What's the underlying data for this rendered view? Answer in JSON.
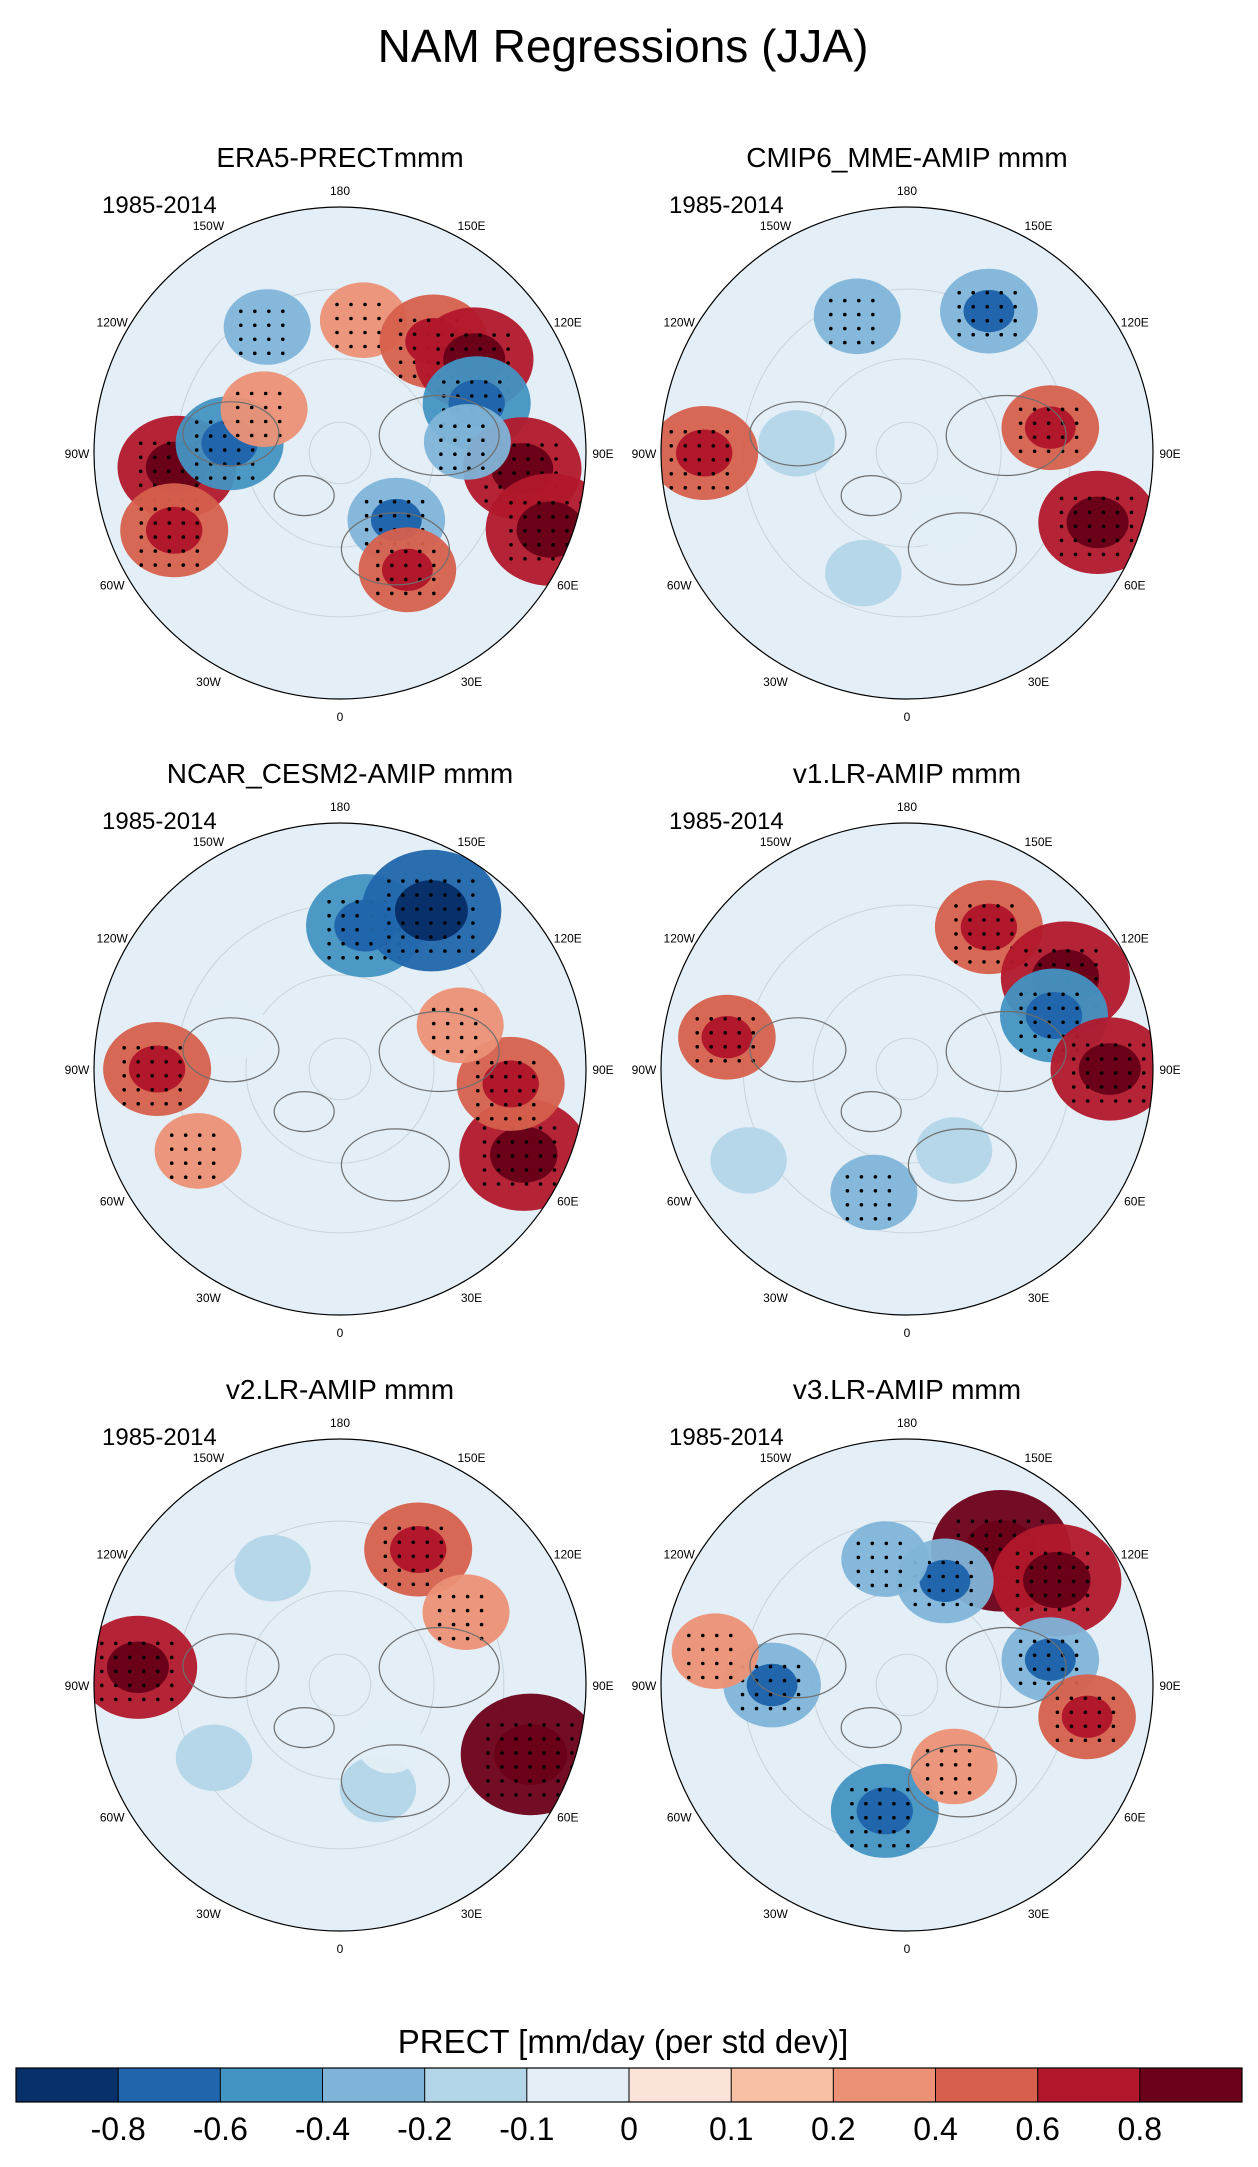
{
  "figure": {
    "title": "NAM Regressions (JJA)",
    "colorbar_label": "PRECT [mm/day (per std dev)]"
  },
  "chart_data": {
    "type": "heatmap",
    "projection": "north-polar-stereographic",
    "title": "NAM Regressions (JJA)",
    "variable": "PRECT",
    "units": "mm/day (per std dev)",
    "longitude_labels": [
      "180",
      "150E",
      "120E",
      "90E",
      "60E",
      "30E",
      "0",
      "30W",
      "60W",
      "90W",
      "120W",
      "150W"
    ],
    "colorbar": {
      "levels": [
        "-0.8",
        "-0.6",
        "-0.4",
        "-0.2",
        "-0.1",
        "0",
        "0.1",
        "0.2",
        "0.4",
        "0.6",
        "0.8"
      ],
      "colors": [
        "#08306b",
        "#2166ac",
        "#4393c3",
        "#7fb4d8",
        "#b3d5e8",
        "#e3eef6",
        "#fbe3d9",
        "#f7bfa3",
        "#ec9176",
        "#d6604d",
        "#b2182b",
        "#6b0019"
      ]
    },
    "panels": [
      {
        "title": "ERA5-PRECTmmm",
        "period": "1985-2014",
        "features": [
          {
            "lon": 170,
            "lat": 48,
            "value": 0.3
          },
          {
            "lon": 140,
            "lat": 45,
            "value": 0.5
          },
          {
            "lon": 125,
            "lat": 40,
            "value": 0.6
          },
          {
            "lon": 110,
            "lat": 45,
            "value": -0.5
          },
          {
            "lon": 85,
            "lat": 35,
            "value": 0.6
          },
          {
            "lon": 95,
            "lat": 50,
            "value": -0.3
          },
          {
            "lon": 70,
            "lat": 25,
            "value": 0.7
          },
          {
            "lon": 40,
            "lat": 62,
            "value": -0.4
          },
          {
            "lon": 30,
            "lat": 48,
            "value": 0.4
          },
          {
            "lon": -85,
            "lat": 40,
            "value": 0.6
          },
          {
            "lon": -95,
            "lat": 55,
            "value": -0.5
          },
          {
            "lon": -65,
            "lat": 35,
            "value": 0.5
          },
          {
            "lon": -120,
            "lat": 62,
            "value": 0.3
          },
          {
            "lon": -150,
            "lat": 45,
            "value": -0.3
          }
        ]
      },
      {
        "title": "CMIP6_MME-AMIP  mmm",
        "period": "1985-2014",
        "features": [
          {
            "lon": -160,
            "lat": 45,
            "value": -0.3
          },
          {
            "lon": 150,
            "lat": 40,
            "value": -0.4
          },
          {
            "lon": 70,
            "lat": 30,
            "value": 0.6
          },
          {
            "lon": 100,
            "lat": 45,
            "value": 0.4
          },
          {
            "lon": -90,
            "lat": 30,
            "value": 0.5
          },
          {
            "lon": -95,
            "lat": 55,
            "value": -0.2
          },
          {
            "lon": -20,
            "lat": 50,
            "value": -0.2
          },
          {
            "lon": 30,
            "lat": 65,
            "value": -0.1
          }
        ]
      },
      {
        "title": "NCAR_CESM2-AMIP  mmm",
        "period": "1985-2014",
        "features": [
          {
            "lon": 170,
            "lat": 45,
            "value": -0.6
          },
          {
            "lon": 150,
            "lat": 35,
            "value": -0.8
          },
          {
            "lon": 65,
            "lat": 30,
            "value": 0.7
          },
          {
            "lon": 85,
            "lat": 38,
            "value": 0.5
          },
          {
            "lon": -90,
            "lat": 35,
            "value": 0.5
          },
          {
            "lon": -60,
            "lat": 40,
            "value": 0.3
          },
          {
            "lon": 110,
            "lat": 50,
            "value": 0.3
          },
          {
            "lon": -110,
            "lat": 55,
            "value": -0.1
          }
        ]
      },
      {
        "title": "v1.LR-AMIP  mmm",
        "period": "1985-2014",
        "features": [
          {
            "lon": 150,
            "lat": 40,
            "value": 0.5
          },
          {
            "lon": 120,
            "lat": 35,
            "value": 0.7
          },
          {
            "lon": 110,
            "lat": 42,
            "value": -0.5
          },
          {
            "lon": 90,
            "lat": 30,
            "value": 0.6
          },
          {
            "lon": -15,
            "lat": 50,
            "value": -0.3
          },
          {
            "lon": -60,
            "lat": 35,
            "value": -0.2
          },
          {
            "lon": -100,
            "lat": 35,
            "value": 0.4
          },
          {
            "lon": 30,
            "lat": 60,
            "value": -0.2
          }
        ]
      },
      {
        "title": "v2.LR-AMIP  mmm",
        "period": "1985-2014",
        "features": [
          {
            "lon": 150,
            "lat": 42,
            "value": 0.5
          },
          {
            "lon": 120,
            "lat": 45,
            "value": 0.3
          },
          {
            "lon": 70,
            "lat": 30,
            "value": 0.8
          },
          {
            "lon": -95,
            "lat": 30,
            "value": 0.6
          },
          {
            "lon": -150,
            "lat": 48,
            "value": -0.2
          },
          {
            "lon": 20,
            "lat": 55,
            "value": -0.2
          },
          {
            "lon": 40,
            "lat": 65,
            "value": -0.1
          },
          {
            "lon": -60,
            "lat": 45,
            "value": -0.2
          }
        ]
      },
      {
        "title": "v3.LR-AMIP  mmm",
        "period": "1985-2014",
        "features": [
          {
            "lon": 145,
            "lat": 40,
            "value": 0.8
          },
          {
            "lon": 125,
            "lat": 35,
            "value": 0.7
          },
          {
            "lon": 160,
            "lat": 55,
            "value": -0.4
          },
          {
            "lon": -170,
            "lat": 50,
            "value": -0.3
          },
          {
            "lon": 100,
            "lat": 45,
            "value": -0.4
          },
          {
            "lon": 80,
            "lat": 35,
            "value": 0.4
          },
          {
            "lon": -10,
            "lat": 50,
            "value": -0.5
          },
          {
            "lon": -90,
            "lat": 48,
            "value": -0.4
          },
          {
            "lon": -100,
            "lat": 32,
            "value": 0.3
          },
          {
            "lon": 30,
            "lat": 60,
            "value": 0.3
          }
        ]
      }
    ]
  }
}
